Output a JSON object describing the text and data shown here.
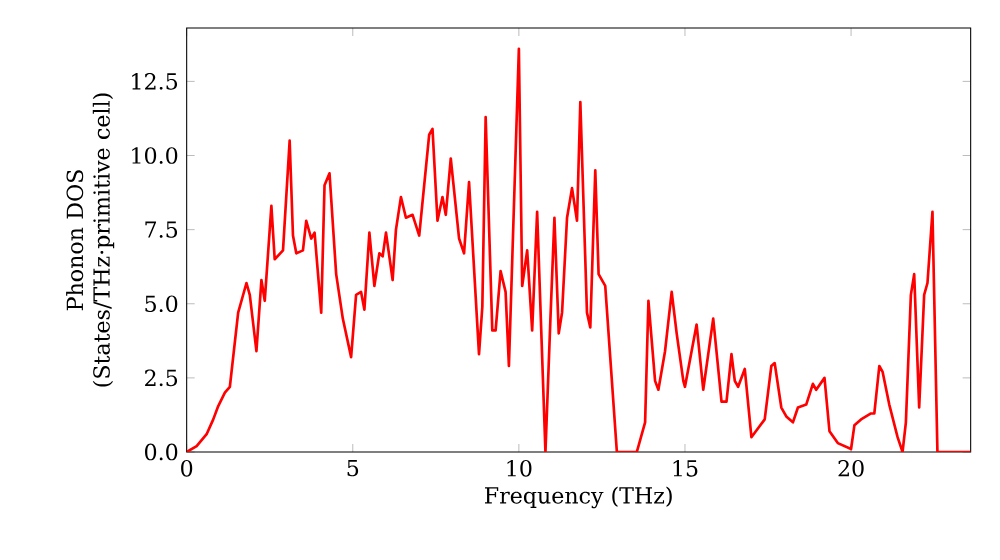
{
  "chart_data": {
    "type": "line",
    "xlabel": "Frequency (THz)",
    "ylabel": "Phonon DOS\n(States/THz·primitive cell)",
    "x": [
      0,
      0.3,
      0.6,
      0.8,
      0.95,
      1.15,
      1.3,
      1.55,
      1.8,
      1.9,
      2.1,
      2.25,
      2.35,
      2.55,
      2.65,
      2.9,
      3.1,
      3.2,
      3.3,
      3.5,
      3.6,
      3.75,
      3.85,
      4.05,
      4.15,
      4.3,
      4.5,
      4.7,
      4.95,
      5.1,
      5.25,
      5.35,
      5.5,
      5.65,
      5.8,
      5.9,
      6.0,
      6.2,
      6.3,
      6.45,
      6.6,
      6.8,
      7.0,
      7.3,
      7.4,
      7.55,
      7.7,
      7.8,
      7.95,
      8.2,
      8.35,
      8.5,
      8.8,
      8.9,
      9.0,
      9.2,
      9.3,
      9.45,
      9.6,
      9.7,
      10.0,
      10.1,
      10.25,
      10.4,
      10.55,
      10.8,
      10.95,
      11.07,
      11.2,
      11.3,
      11.45,
      11.6,
      11.75,
      11.85,
      12.05,
      12.15,
      12.3,
      12.4,
      12.6,
      12.75,
      12.95,
      13.55,
      13.8,
      13.9,
      14.1,
      14.2,
      14.4,
      14.6,
      14.75,
      14.95,
      15.0,
      15.35,
      15.55,
      15.85,
      16.1,
      16.25,
      16.4,
      16.5,
      16.6,
      16.8,
      17.0,
      17.4,
      17.6,
      17.7,
      17.9,
      18.05,
      18.25,
      18.4,
      18.65,
      18.85,
      18.95,
      19.2,
      19.35,
      19.6,
      20.0,
      20.1,
      20.3,
      20.6,
      20.7,
      20.85,
      20.95,
      21.15,
      21.4,
      21.55,
      21.65,
      21.8,
      21.9,
      22.05,
      22.2,
      22.3,
      22.45,
      22.6,
      23.6
    ],
    "series": [
      {
        "color": "#ff0000",
        "values": [
          0,
          0.2,
          0.6,
          1.1,
          1.55,
          2.0,
          2.2,
          4.7,
          5.7,
          5.3,
          3.4,
          5.8,
          5.1,
          8.3,
          6.5,
          6.8,
          10.5,
          7.3,
          6.7,
          6.8,
          7.8,
          7.2,
          7.4,
          4.7,
          9.0,
          9.4,
          6.0,
          4.5,
          3.2,
          5.3,
          5.4,
          4.8,
          7.4,
          5.6,
          6.7,
          6.6,
          7.4,
          5.8,
          7.5,
          8.6,
          7.9,
          8.0,
          7.3,
          10.7,
          10.9,
          7.8,
          8.6,
          8.0,
          9.9,
          7.2,
          6.7,
          9.1,
          3.3,
          4.9,
          11.3,
          4.1,
          4.1,
          6.1,
          5.4,
          2.9,
          13.6,
          5.6,
          6.8,
          4.1,
          8.1,
          0,
          4.5,
          7.9,
          4.0,
          4.7,
          7.9,
          8.9,
          7.8,
          11.8,
          4.7,
          4.2,
          9.5,
          6.0,
          5.6,
          3.2,
          0,
          0,
          1.0,
          5.1,
          2.4,
          2.1,
          3.4,
          5.4,
          4.0,
          2.4,
          2.2,
          4.3,
          2.1,
          4.5,
          1.7,
          1.7,
          3.3,
          2.4,
          2.2,
          2.8,
          0.5,
          1.1,
          2.9,
          3.0,
          1.5,
          1.2,
          1.0,
          1.5,
          1.6,
          2.3,
          2.1,
          2.5,
          0.7,
          0.3,
          0.1,
          0.9,
          1.1,
          1.3,
          1.3,
          2.9,
          2.7,
          1.6,
          0.5,
          0,
          1.0,
          5.3,
          6.0,
          1.5,
          5.3,
          5.7,
          8.1,
          0,
          0
        ]
      }
    ],
    "xlim": [
      0,
      23.6
    ],
    "ylim": [
      0,
      14.3
    ],
    "xticks": [
      0,
      5,
      10,
      15,
      20
    ],
    "yticks": [
      {
        "value": 0,
        "label": "0.0"
      },
      {
        "value": 2.5,
        "label": "2.5"
      },
      {
        "value": 5,
        "label": "5.0"
      },
      {
        "value": 7.5,
        "label": "7.5"
      },
      {
        "value": 10,
        "label": "10.0"
      },
      {
        "value": 12.5,
        "label": "12.5"
      }
    ],
    "grid": false,
    "marker": "none",
    "line_style": "solid"
  }
}
